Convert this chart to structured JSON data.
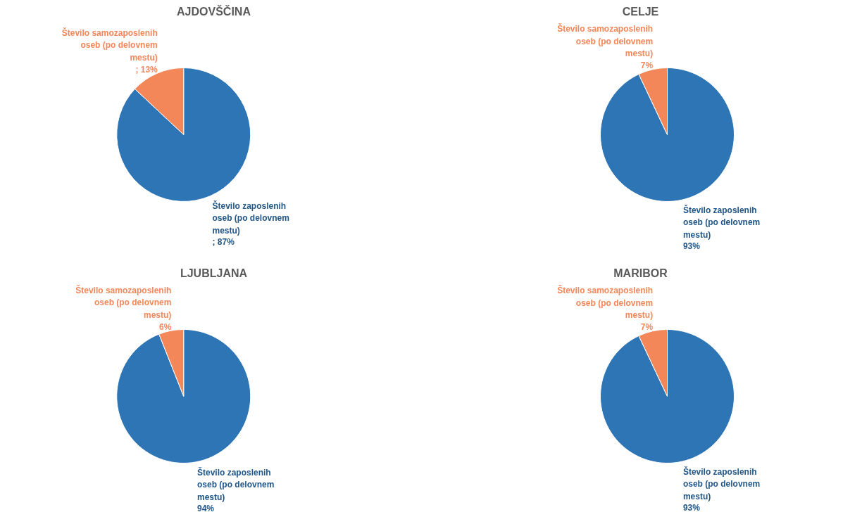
{
  "chart_data": [
    {
      "type": "pie",
      "title": "AJDOVŠČINA",
      "categories": [
        "Število zaposlenih oseb (po delovnem mestu)",
        "Število samozaposlenih oseb (po delovnem mestu)"
      ],
      "values": [
        87,
        13
      ],
      "colors": [
        "#2e75b6",
        "#f4875a"
      ],
      "value_labels": [
        "; 87%",
        "; 13%"
      ]
    },
    {
      "type": "pie",
      "title": "CELJE",
      "categories": [
        "Število zaposlenih oseb (po delovnem mestu)",
        "Število samozaposlenih oseb (po delovnem mestu)"
      ],
      "values": [
        93,
        7
      ],
      "colors": [
        "#2e75b6",
        "#f4875a"
      ],
      "value_labels": [
        "93%",
        "7%"
      ]
    },
    {
      "type": "pie",
      "title": "LJUBLJANA",
      "categories": [
        "Število zaposlenih oseb (po delovnem mestu)",
        "Število samozaposlenih oseb (po delovnem mestu)"
      ],
      "values": [
        94,
        6
      ],
      "colors": [
        "#2e75b6",
        "#f4875a"
      ],
      "value_labels": [
        "94%",
        "6%"
      ]
    },
    {
      "type": "pie",
      "title": "MARIBOR",
      "categories": [
        "Število zaposlenih oseb (po delovnem mestu)",
        "Število samozaposlenih oseb (po delovnem mestu)"
      ],
      "values": [
        93,
        7
      ],
      "colors": [
        "#2e75b6",
        "#f4875a"
      ],
      "value_labels": [
        "93%",
        "7%"
      ]
    }
  ]
}
